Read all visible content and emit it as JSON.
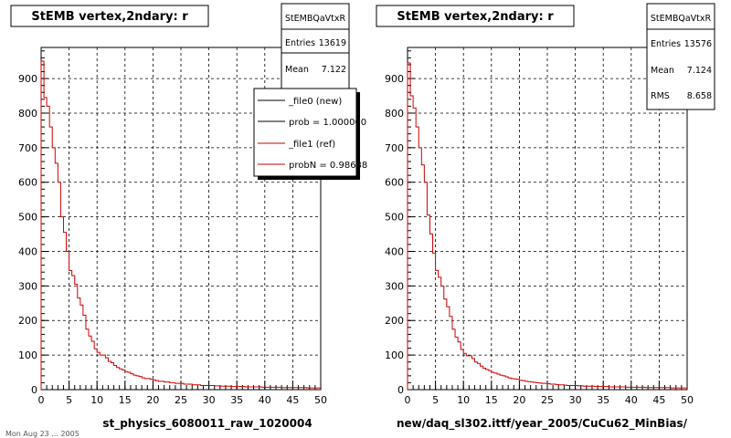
{
  "colors": {
    "new": "#000000",
    "ref": "#cc0000",
    "grid": "#000000"
  },
  "chart_data": [
    {
      "type": "line",
      "title": "StEMB  vertex,2ndary: r",
      "xlabel": "st_physics_6080011_raw_1020004",
      "ylabel": "",
      "xlim": [
        0,
        50
      ],
      "ylim": [
        0,
        990
      ],
      "xticks": [
        0,
        5,
        10,
        15,
        20,
        25,
        30,
        35,
        40,
        45,
        50
      ],
      "yticks": [
        0,
        100,
        200,
        300,
        400,
        500,
        600,
        700,
        800,
        900
      ],
      "grid": true,
      "stats": {
        "name": "StEMBQaVtxR",
        "rows": [
          [
            "Entries",
            "13619"
          ],
          [
            "Mean",
            "7.122"
          ]
        ]
      },
      "legend": {
        "placement": "top-right",
        "entries": [
          {
            "label": "_file0 (new)",
            "color": "#000000"
          },
          {
            "label": "prob = 1.000000",
            "color": "#000000"
          },
          {
            "label": "_file1 (ref)",
            "color": "#cc0000"
          },
          {
            "label": "probN = 0.98638",
            "color": "#cc0000"
          }
        ]
      },
      "series": [
        {
          "name": "_file1 (ref)",
          "color": "#cc0000",
          "bin_width": 0.5,
          "values": [
            950,
            845,
            820,
            760,
            700,
            655,
            600,
            500,
            455,
            400,
            345,
            330,
            305,
            265,
            245,
            215,
            175,
            155,
            140,
            118,
            108,
            100,
            100,
            92,
            82,
            78,
            70,
            64,
            60,
            57,
            52,
            50,
            46,
            42,
            40,
            38,
            34,
            32,
            32,
            30,
            28,
            26,
            24,
            24,
            22,
            22,
            20,
            20,
            18,
            18,
            18,
            16,
            16,
            16,
            14,
            14,
            14,
            12,
            12,
            12,
            12,
            12,
            11,
            11,
            10,
            10,
            10,
            10,
            9,
            9,
            9,
            9,
            9,
            8,
            8,
            8,
            8,
            8,
            8,
            7,
            7,
            7,
            7,
            7,
            7,
            7,
            6,
            6,
            6,
            6,
            6,
            6,
            6,
            6,
            6,
            5,
            5,
            5,
            5,
            5
          ]
        }
      ]
    },
    {
      "type": "line",
      "title": "StEMB  vertex,2ndary: r",
      "xlabel": "new/daq_sl302.ittf/year_2005/CuCu62_MinBias/",
      "ylabel": "",
      "xlim": [
        0,
        50
      ],
      "ylim": [
        0,
        990
      ],
      "xticks": [
        0,
        5,
        10,
        15,
        20,
        25,
        30,
        35,
        40,
        45,
        50
      ],
      "yticks": [
        0,
        100,
        200,
        300,
        400,
        500,
        600,
        700,
        800,
        900
      ],
      "grid": true,
      "stats": {
        "name": "StEMBQaVtxR",
        "rows": [
          [
            "Entries",
            "13576"
          ],
          [
            "Mean",
            "7.124"
          ],
          [
            "RMS",
            "8.658"
          ]
        ]
      },
      "series": [
        {
          "name": "",
          "color": "#cc0000",
          "bin_width": 0.5,
          "values": [
            945,
            850,
            815,
            760,
            700,
            650,
            600,
            505,
            450,
            395,
            345,
            325,
            300,
            262,
            240,
            212,
            175,
            152,
            138,
            116,
            105,
            98,
            98,
            90,
            80,
            76,
            68,
            62,
            58,
            55,
            50,
            48,
            45,
            42,
            40,
            37,
            34,
            32,
            31,
            30,
            27,
            26,
            24,
            23,
            22,
            21,
            20,
            19,
            18,
            18,
            17,
            16,
            16,
            15,
            14,
            14,
            13,
            12,
            12,
            12,
            12,
            11,
            11,
            10,
            10,
            10,
            10,
            9,
            9,
            9,
            9,
            9,
            8,
            8,
            8,
            8,
            8,
            8,
            7,
            7,
            7,
            7,
            7,
            7,
            7,
            6,
            6,
            6,
            6,
            6,
            6,
            6,
            6,
            6,
            5,
            5,
            5,
            5,
            5,
            5
          ]
        }
      ]
    }
  ],
  "footer": {
    "caption": "Mon Aug 23 ... 2005"
  }
}
